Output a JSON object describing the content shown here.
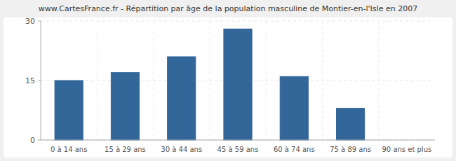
{
  "chart_data": {
    "type": "bar",
    "title": "www.CartesFrance.fr - Répartition par âge de la population masculine de Montier-en-l'Isle en 2007",
    "categories": [
      "0 à 14 ans",
      "15 à 29 ans",
      "30 à 44 ans",
      "45 à 59 ans",
      "60 à 74 ans",
      "75 à 89 ans",
      "90 ans et plus"
    ],
    "values": [
      15,
      17,
      21,
      28,
      16,
      8,
      0
    ],
    "color": "#336699",
    "ylim": [
      0,
      30
    ],
    "yticks": [
      0,
      15,
      30
    ],
    "grid": true
  }
}
